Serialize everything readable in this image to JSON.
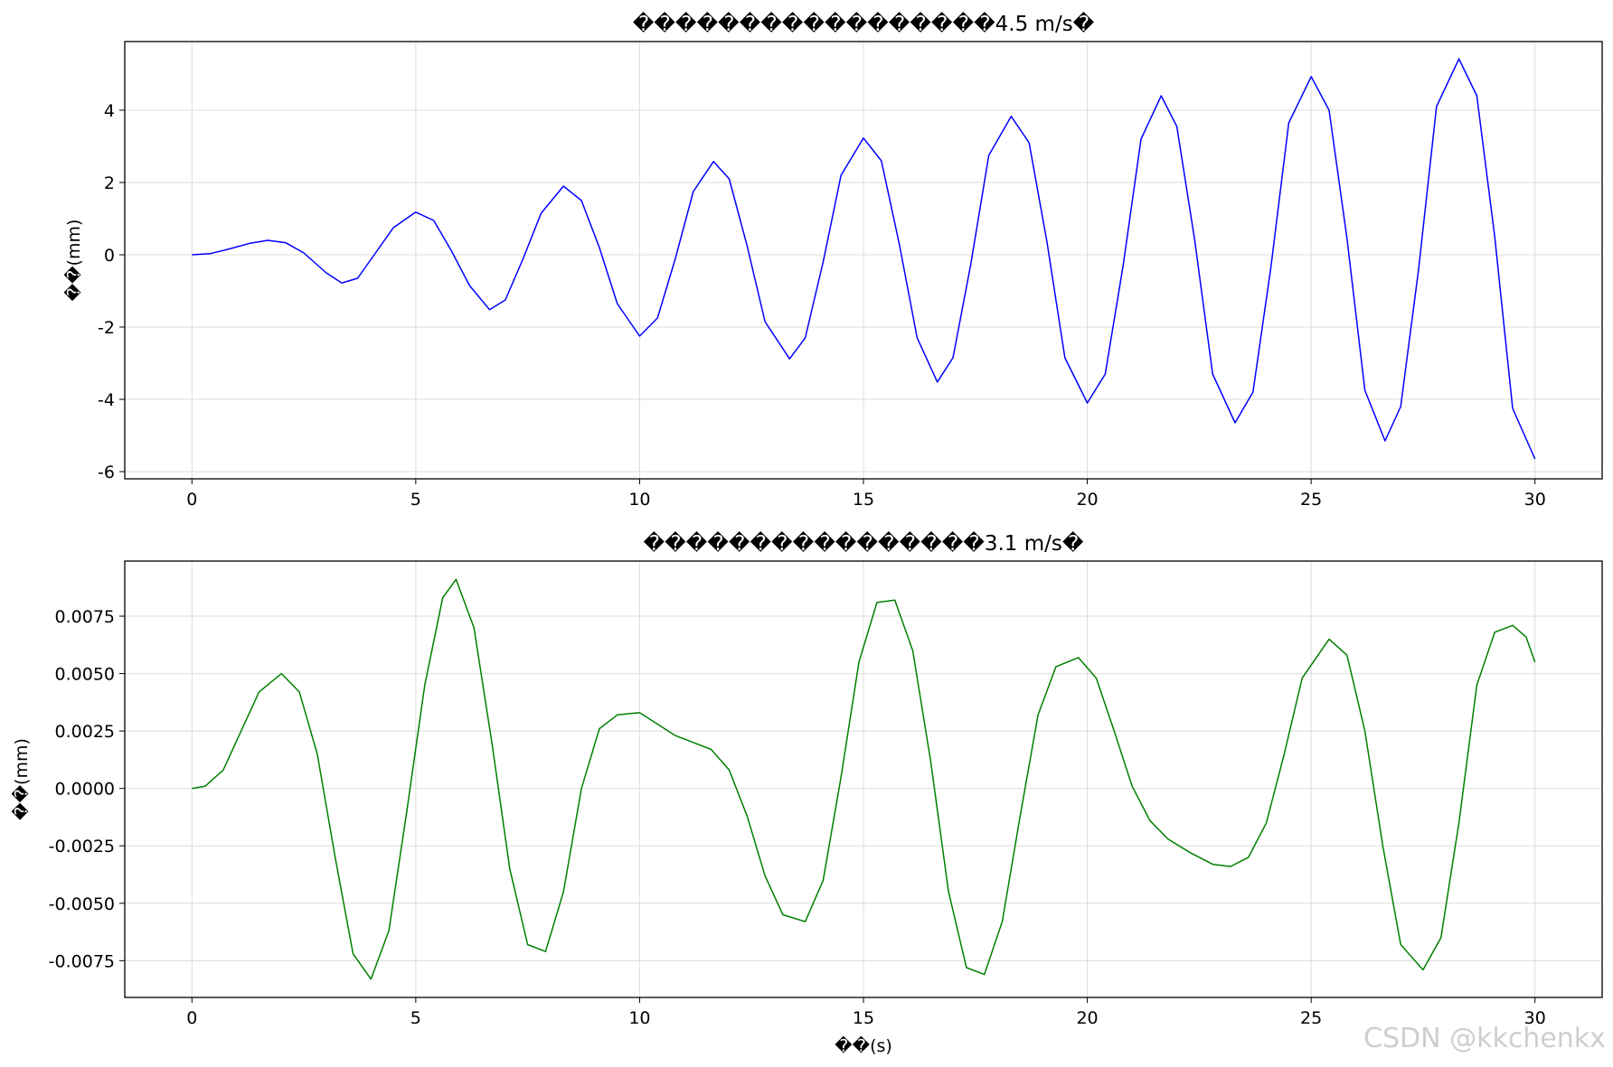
{
  "chart_data": [
    {
      "type": "line",
      "title": "�����������������4.5 m/s�",
      "xlabel": "",
      "ylabel": "��(mm)",
      "xlim": [
        -1.5,
        31.5
      ],
      "ylim": [
        -6.2,
        5.9
      ],
      "x_ticks": [
        0,
        5,
        10,
        15,
        20,
        25,
        30
      ],
      "x_tick_labels": [
        "0",
        "5",
        "10",
        "15",
        "20",
        "25",
        "30"
      ],
      "y_ticks": [
        4,
        2,
        0,
        -2,
        -4,
        -6
      ],
      "y_tick_labels": [
        "4",
        "2",
        "0",
        "-2",
        "-4",
        "-6"
      ],
      "grid": true,
      "series": [
        {
          "color": "#0000ff",
          "x": [
            0,
            0.4,
            0.8,
            1.3,
            1.7,
            2.1,
            2.5,
            3.0,
            3.35,
            3.7,
            4.1,
            4.5,
            5.0,
            5.4,
            5.8,
            6.2,
            6.65,
            7.0,
            7.4,
            7.8,
            8.3,
            8.7,
            9.1,
            9.5,
            10.0,
            10.4,
            10.8,
            11.2,
            11.65,
            12.0,
            12.4,
            12.8,
            13.35,
            13.7,
            14.1,
            14.5,
            15.0,
            15.4,
            15.8,
            16.2,
            16.65,
            17.0,
            17.4,
            17.8,
            18.3,
            18.7,
            19.1,
            19.5,
            20.0,
            20.4,
            20.8,
            21.2,
            21.65,
            22.0,
            22.4,
            22.8,
            23.3,
            23.7,
            24.1,
            24.5,
            25.0,
            25.4,
            25.8,
            26.2,
            26.65,
            27.0,
            27.4,
            27.8,
            28.3,
            28.7,
            29.1,
            29.5,
            30.0
          ],
          "y": [
            0,
            0.03,
            0.15,
            0.32,
            0.4,
            0.33,
            0.05,
            -0.5,
            -0.78,
            -0.65,
            0.05,
            0.75,
            1.18,
            0.95,
            0.1,
            -0.85,
            -1.52,
            -1.25,
            -0.1,
            1.15,
            1.9,
            1.5,
            0.2,
            -1.35,
            -2.25,
            -1.75,
            -0.1,
            1.75,
            2.58,
            2.1,
            0.25,
            -1.85,
            -2.88,
            -2.3,
            -0.2,
            2.2,
            3.23,
            2.6,
            0.3,
            -2.3,
            -3.52,
            -2.85,
            -0.25,
            2.75,
            3.83,
            3.1,
            0.35,
            -2.85,
            -4.1,
            -3.3,
            -0.3,
            3.2,
            4.4,
            3.55,
            0.4,
            -3.3,
            -4.65,
            -3.8,
            -0.35,
            3.65,
            4.93,
            4.0,
            0.45,
            -3.75,
            -5.15,
            -4.2,
            -0.4,
            4.1,
            5.42,
            4.4,
            0.5,
            -4.25,
            -5.65
          ]
        }
      ]
    },
    {
      "type": "line",
      "title": "����������������3.1 m/s�",
      "xlabel": "��(s)",
      "ylabel": "��(mm)",
      "xlim": [
        -1.5,
        31.5
      ],
      "ylim": [
        -0.0091,
        0.0099
      ],
      "x_ticks": [
        0,
        5,
        10,
        15,
        20,
        25,
        30
      ],
      "x_tick_labels": [
        "0",
        "5",
        "10",
        "15",
        "20",
        "25",
        "30"
      ],
      "y_ticks": [
        0.0075,
        0.005,
        0.0025,
        0,
        -0.0025,
        -0.005,
        -0.0075
      ],
      "y_tick_labels": [
        "0.0075",
        "0.0050",
        "0.0025",
        "0.0000",
        "-0.0025",
        "-0.0050",
        "-0.0075"
      ],
      "grid": true,
      "series": [
        {
          "color": "#008000",
          "x": [
            0,
            0.3,
            0.7,
            1.1,
            1.5,
            2.0,
            2.4,
            2.8,
            3.2,
            3.6,
            4.0,
            4.4,
            4.8,
            5.2,
            5.6,
            5.9,
            6.3,
            6.7,
            7.1,
            7.5,
            7.9,
            8.3,
            8.7,
            9.1,
            9.5,
            10.0,
            10.4,
            10.8,
            11.2,
            11.6,
            12.0,
            12.4,
            12.8,
            13.2,
            13.7,
            14.1,
            14.5,
            14.9,
            15.3,
            15.7,
            16.1,
            16.5,
            16.9,
            17.3,
            17.7,
            18.1,
            18.5,
            18.9,
            19.3,
            19.8,
            20.2,
            20.6,
            21.0,
            21.4,
            21.8,
            22.3,
            22.8,
            23.2,
            23.6,
            24.0,
            24.4,
            24.8,
            25.4,
            25.8,
            26.2,
            26.6,
            27.0,
            27.5,
            27.9,
            28.3,
            28.7,
            29.1,
            29.5,
            29.8,
            30.0
          ],
          "y": [
            0,
            0.0001,
            0.0008,
            0.0025,
            0.0042,
            0.005,
            0.0042,
            0.0015,
            -0.003,
            -0.0072,
            -0.0083,
            -0.0062,
            -0.001,
            0.0045,
            0.0083,
            0.0091,
            0.007,
            0.002,
            -0.0035,
            -0.0068,
            -0.0071,
            -0.0045,
            0.0,
            0.0026,
            0.0032,
            0.0033,
            0.0028,
            0.0023,
            0.002,
            0.0017,
            0.0008,
            -0.0012,
            -0.0038,
            -0.0055,
            -0.0058,
            -0.004,
            0.0005,
            0.0055,
            0.0081,
            0.0082,
            0.006,
            0.0012,
            -0.0045,
            -0.0078,
            -0.0081,
            -0.0058,
            -0.0012,
            0.0032,
            0.0053,
            0.0057,
            0.0048,
            0.0025,
            0.0001,
            -0.0014,
            -0.0022,
            -0.0028,
            -0.0033,
            -0.0034,
            -0.003,
            -0.0015,
            0.0015,
            0.0048,
            0.0065,
            0.0058,
            0.0025,
            -0.0025,
            -0.0068,
            -0.0079,
            -0.0065,
            -0.0015,
            0.0045,
            0.0068,
            0.0071,
            0.0066,
            0.0055
          ]
        }
      ]
    }
  ],
  "watermark": "CSDN @kkchenkx"
}
